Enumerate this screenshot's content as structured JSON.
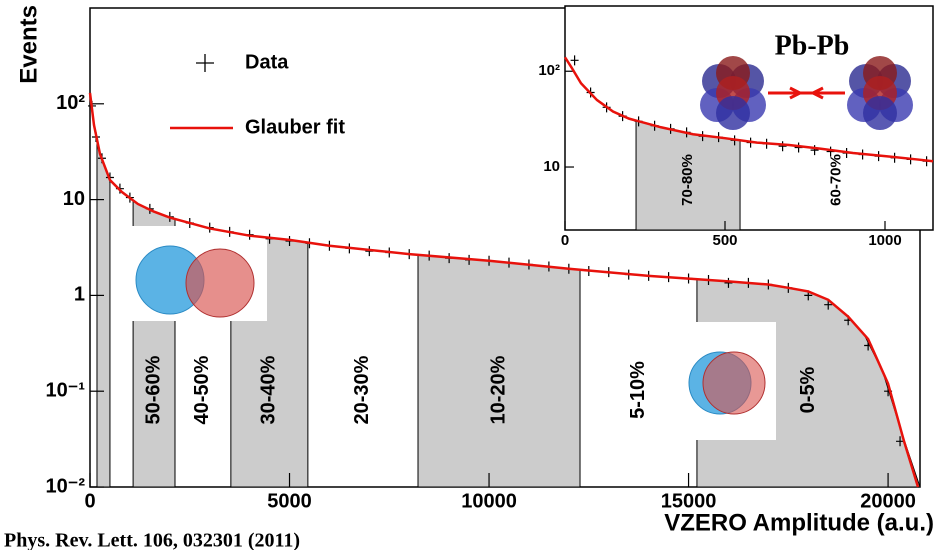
{
  "chart_data": [
    {
      "type": "line",
      "log_y": true,
      "x_label": "VZERO Amplitude (a.u.)",
      "y_label": "Events",
      "xlim": [
        0,
        20800
      ],
      "xticks": [
        0,
        5000,
        10000,
        15000,
        20000
      ],
      "ylim": [
        0.01,
        1000
      ],
      "yticks": [
        {
          "value": 0.01,
          "label": "10⁻²"
        },
        {
          "value": 0.1,
          "label": "10⁻¹"
        },
        1,
        10,
        {
          "value": 100,
          "label": "10²"
        }
      ],
      "regions": [
        {
          "x": [
            175,
            500
          ],
          "shaded": true
        },
        {
          "label": "50-60%",
          "x": [
            1080,
            2130
          ],
          "shaded": true
        },
        {
          "label": "40-50%",
          "x": [
            2130,
            3530
          ],
          "shaded": false
        },
        {
          "label": "30-40%",
          "x": [
            3530,
            5460
          ],
          "shaded": true
        },
        {
          "label": "20-30%",
          "x": [
            5460,
            8220
          ],
          "shaded": false
        },
        {
          "label": "10-20%",
          "x": [
            8220,
            12280
          ],
          "shaded": true
        },
        {
          "label": "5-10%",
          "x": [
            12280,
            15210
          ],
          "shaded": false
        },
        {
          "label": "0-5%",
          "x": [
            15210,
            20800
          ],
          "shaded": true
        }
      ],
      "series": [
        {
          "name": "Data",
          "color": "#000000",
          "marker": "+",
          "x": [
            50,
            150,
            300,
            500,
            750,
            1000,
            1500,
            2000,
            2500,
            3000,
            3500,
            4000,
            4500,
            5000,
            5500,
            6000,
            6500,
            7000,
            7500,
            8000,
            8500,
            9000,
            9500,
            10000,
            10500,
            11000,
            11500,
            12000,
            12500,
            13000,
            13500,
            14000,
            14500,
            15000,
            15500,
            16000,
            16500,
            17000,
            17500,
            18000,
            18500,
            19000,
            19500,
            20000,
            20300
          ],
          "values": [
            95,
            45,
            27,
            17,
            13,
            10.5,
            8,
            6.6,
            5.7,
            5.1,
            4.6,
            4.3,
            3.9,
            3.7,
            3.5,
            3.3,
            3.1,
            2.9,
            2.8,
            2.7,
            2.6,
            2.45,
            2.35,
            2.3,
            2.2,
            2.1,
            2,
            1.9,
            1.8,
            1.75,
            1.65,
            1.6,
            1.55,
            1.5,
            1.45,
            1.35,
            1.35,
            1.3,
            1.2,
            1,
            0.8,
            0.55,
            0.3,
            0.1,
            0.03
          ]
        },
        {
          "name": "Glauber fit",
          "color": "#e8120c",
          "x": [
            0,
            100,
            250,
            500,
            800,
            1200,
            1600,
            2000,
            3000,
            4000,
            5000,
            6000,
            8000,
            10000,
            12000,
            14000,
            16000,
            17000,
            17500,
            18000,
            18500,
            19000,
            19500,
            20000,
            20400,
            20750
          ],
          "values": [
            130,
            60,
            30,
            16,
            12,
            9,
            7.5,
            6.5,
            5,
            4.2,
            3.8,
            3.3,
            2.7,
            2.3,
            1.9,
            1.6,
            1.4,
            1.3,
            1.2,
            1.1,
            0.9,
            0.6,
            0.35,
            0.12,
            0.03,
            0.01
          ]
        }
      ],
      "source": "Phys. Rev. Lett. 106, 032301 (2011)"
    },
    {
      "type": "line",
      "log_y": true,
      "title": "Pb-Pb",
      "xlim": [
        0,
        1150
      ],
      "xticks": [
        0,
        500,
        1000
      ],
      "ylim": [
        2.2,
        480
      ],
      "yticks": [
        10,
        {
          "value": 100,
          "label": "10²"
        }
      ],
      "regions": [
        {
          "label": "70-80%",
          "x": [
            222,
            547
          ],
          "shaded": true
        },
        {
          "label": "60-70%",
          "x": [
            547,
            1150
          ],
          "shaded": false
        }
      ],
      "series": [
        {
          "color": "#000000",
          "marker": "+",
          "x": [
            30,
            80,
            130,
            180,
            230,
            280,
            330,
            380,
            430,
            480,
            530,
            580,
            630,
            680,
            730,
            780,
            830,
            880,
            930,
            980,
            1030,
            1080,
            1130
          ],
          "values": [
            130,
            60,
            42,
            34,
            30,
            27,
            25,
            23,
            21,
            20.5,
            19,
            18,
            17.5,
            16.5,
            16,
            15,
            14.5,
            14,
            13.5,
            13,
            12.5,
            12,
            11.5
          ]
        },
        {
          "color": "#e8120c",
          "x": [
            0,
            20,
            50,
            100,
            150,
            200,
            300,
            400,
            500,
            600,
            700,
            800,
            900,
            1000,
            1100,
            1150
          ],
          "values": [
            140,
            110,
            75,
            50,
            38,
            32,
            26,
            22,
            20,
            18,
            17,
            15.5,
            14,
            13,
            12,
            11.5
          ]
        }
      ]
    }
  ]
}
